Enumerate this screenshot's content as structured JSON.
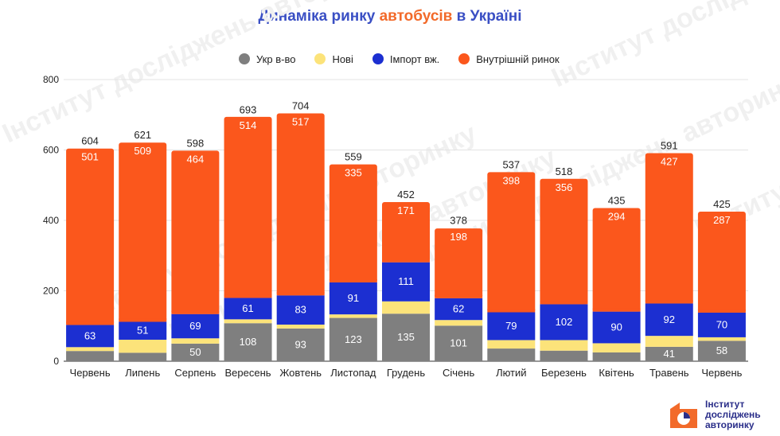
{
  "title": {
    "part1": "Динаміка ринку ",
    "highlight": "автобусів",
    "part2": " в Україні"
  },
  "legend": [
    {
      "label": "Укр в-во",
      "color": "#7f7f7f"
    },
    {
      "label": "Нові",
      "color": "#fce37a"
    },
    {
      "label": "Імпорт вж.",
      "color": "#1c2fd1"
    },
    {
      "label": "Внутрішній ринок",
      "color": "#fb571c"
    }
  ],
  "logo": {
    "line1": "Інститут",
    "line2": "досліджень",
    "line3": "авторинку",
    "watermark": "Інститут досліджень авторинку"
  },
  "chart_data": {
    "type": "bar",
    "stacked": true,
    "categories": [
      "Червень",
      "Липень",
      "Серпень",
      "Вересень",
      "Жовтень",
      "Листопад",
      "Грудень",
      "Січень",
      "Лютий",
      "Березень",
      "Квітень",
      "Травень",
      "Червень"
    ],
    "totals": [
      604,
      621,
      598,
      693,
      704,
      559,
      452,
      378,
      537,
      518,
      435,
      591,
      425
    ],
    "series": [
      {
        "name": "Укр в-во",
        "color": "#7f7f7f",
        "values": [
          29,
          24,
          50,
          108,
          93,
          123,
          135,
          101,
          36,
          30,
          25,
          41,
          58
        ],
        "labels": [
          "",
          "",
          "50",
          "108",
          "93",
          "123",
          "135",
          "101",
          "",
          "",
          "",
          "41",
          "58"
        ]
      },
      {
        "name": "Нові",
        "color": "#fce37a",
        "values": [
          11,
          37,
          15,
          11,
          11,
          10,
          35,
          16,
          24,
          30,
          26,
          31,
          10
        ],
        "labels": [
          "",
          "",
          "",
          "",
          "",
          "",
          "",
          "",
          "",
          "",
          "",
          "",
          ""
        ]
      },
      {
        "name": "Імпорт вж.",
        "color": "#1c2fd1",
        "values": [
          63,
          51,
          69,
          61,
          83,
          91,
          111,
          62,
          79,
          102,
          90,
          92,
          70
        ],
        "labels": [
          "63",
          "51",
          "69",
          "61",
          "83",
          "91",
          "111",
          "62",
          "79",
          "102",
          "90",
          "92",
          "70"
        ]
      },
      {
        "name": "Внутрішній ринок",
        "color": "#fb571c",
        "values": [
          501,
          509,
          464,
          514,
          517,
          335,
          171,
          198,
          398,
          356,
          294,
          427,
          287
        ],
        "labels": [
          "501",
          "509",
          "464",
          "514",
          "517",
          "335",
          "171",
          "198",
          "398",
          "356",
          "294",
          "427",
          "287"
        ]
      }
    ],
    "ylim": [
      0,
      800
    ],
    "yticks": [
      0,
      200,
      400,
      600,
      800
    ],
    "grid": true,
    "legend_position": "top"
  }
}
